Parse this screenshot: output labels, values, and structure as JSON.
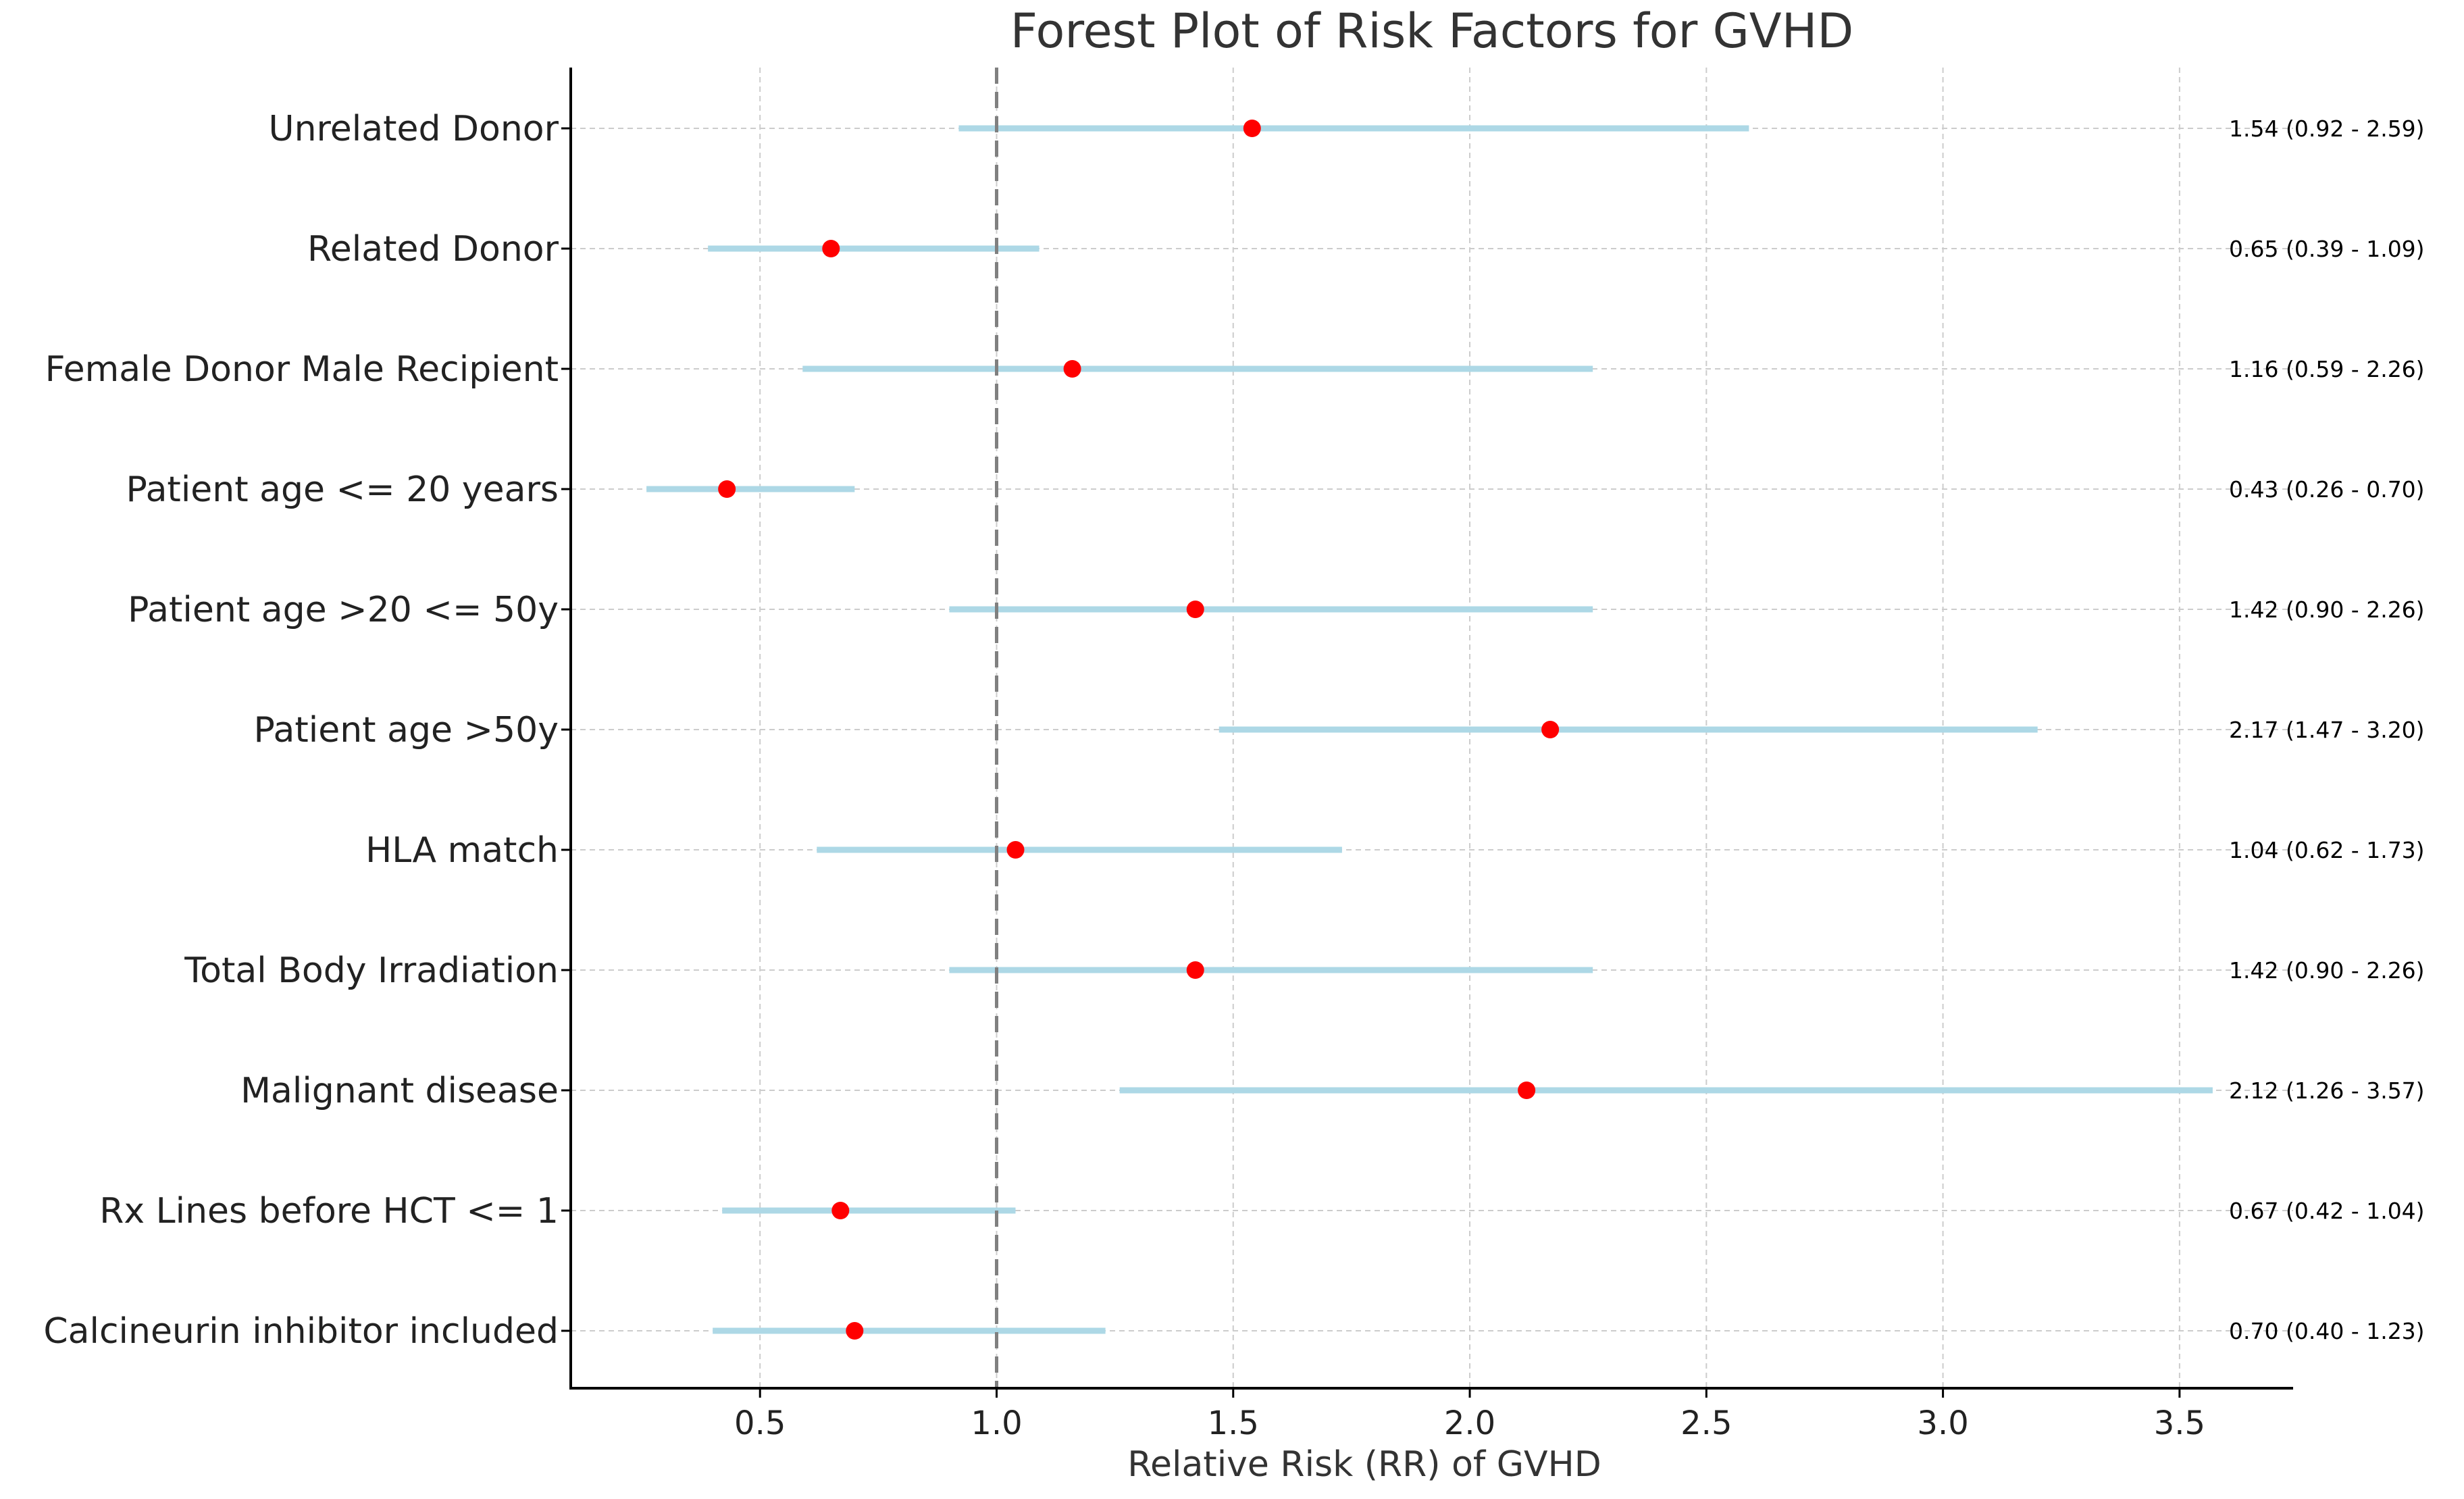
{
  "chart_data": {
    "type": "forest",
    "title": "Forest Plot of Risk Factors for GVHD",
    "xlabel": "Relative Risk (RR) of GVHD",
    "ylabel": "",
    "xlim": [
      0.1,
      3.74
    ],
    "xticks": [
      0.5,
      1.0,
      1.5,
      2.0,
      2.5,
      3.0,
      3.5
    ],
    "xtick_labels": [
      "0.5",
      "1.0",
      "1.5",
      "2.0",
      "2.5",
      "3.0",
      "3.5"
    ],
    "reference_line": 1.0,
    "grid": true,
    "colors": {
      "point": "#ff0000",
      "ci": "#add8e6",
      "reference": "#808080",
      "grid": "#cccccc"
    },
    "rows": [
      {
        "label": "Unrelated Donor",
        "rr": 1.54,
        "lower": 0.92,
        "upper": 2.59,
        "annotation": "1.54 (0.92 - 2.59)"
      },
      {
        "label": "Related Donor",
        "rr": 0.65,
        "lower": 0.39,
        "upper": 1.09,
        "annotation": "0.65 (0.39 - 1.09)"
      },
      {
        "label": "Female Donor Male Recipient",
        "rr": 1.16,
        "lower": 0.59,
        "upper": 2.26,
        "annotation": "1.16 (0.59 - 2.26)"
      },
      {
        "label": "Patient age <= 20 years",
        "rr": 0.43,
        "lower": 0.26,
        "upper": 0.7,
        "annotation": "0.43 (0.26 - 0.70)"
      },
      {
        "label": "Patient age >20 <= 50y",
        "rr": 1.42,
        "lower": 0.9,
        "upper": 2.26,
        "annotation": "1.42 (0.90 - 2.26)"
      },
      {
        "label": "Patient age >50y",
        "rr": 2.17,
        "lower": 1.47,
        "upper": 3.2,
        "annotation": "2.17 (1.47 - 3.20)"
      },
      {
        "label": "HLA match",
        "rr": 1.04,
        "lower": 0.62,
        "upper": 1.73,
        "annotation": "1.04 (0.62 - 1.73)"
      },
      {
        "label": "Total Body Irradiation",
        "rr": 1.42,
        "lower": 0.9,
        "upper": 2.26,
        "annotation": "1.42 (0.90 - 2.26)"
      },
      {
        "label": "Malignant disease",
        "rr": 2.12,
        "lower": 1.26,
        "upper": 3.57,
        "annotation": "2.12 (1.26 - 3.57)"
      },
      {
        "label": "Rx Lines before HCT <= 1",
        "rr": 0.67,
        "lower": 0.42,
        "upper": 1.04,
        "annotation": "0.67 (0.42 - 1.04)"
      },
      {
        "label": "Calcineurin inhibitor included",
        "rr": 0.7,
        "lower": 0.4,
        "upper": 1.23,
        "annotation": "0.70 (0.40 - 1.23)"
      }
    ]
  }
}
